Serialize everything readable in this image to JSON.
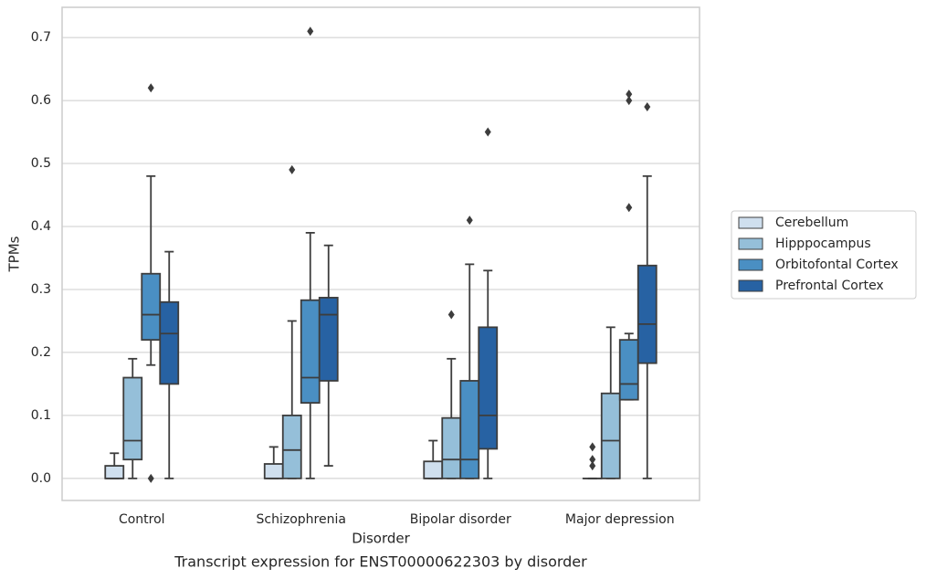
{
  "chart_data": {
    "type": "box",
    "title": "Transcript expression for ENST00000622303 by disorder",
    "xlabel": "Disorder",
    "ylabel": "TPMs",
    "categories": [
      "Control",
      "Schizophrenia",
      "Bipolar disorder",
      "Major depression"
    ],
    "ylim": [
      -0.035,
      0.748
    ],
    "yticks": [
      {
        "value": 0,
        "label": "0.0"
      },
      0.1,
      0.2,
      0.3,
      0.4,
      0.5,
      0.6,
      0.7
    ],
    "grid": true,
    "legend": "right",
    "series": [
      {
        "name": "Cerebellum",
        "color": "#cfdfee",
        "boxes": [
          {
            "min": 0,
            "q1": 0,
            "median": 0,
            "q3": 0.02,
            "max": 0.04,
            "outliers": []
          },
          {
            "min": 0,
            "q1": 0,
            "median": 0,
            "q3": 0.023,
            "max": 0.05,
            "outliers": []
          },
          {
            "min": 0,
            "q1": 0,
            "median": 0,
            "q3": 0.027,
            "max": 0.06,
            "outliers": []
          },
          {
            "min": 0,
            "q1": 0,
            "median": 0,
            "q3": 0,
            "max": 0,
            "outliers": [
              0.02,
              0.03,
              0.05
            ]
          }
        ]
      },
      {
        "name": "Hipppocampus",
        "color": "#95bfd9",
        "boxes": [
          {
            "min": 0,
            "q1": 0.03,
            "median": 0.06,
            "q3": 0.16,
            "max": 0.19,
            "outliers": []
          },
          {
            "min": 0,
            "q1": 0,
            "median": 0.045,
            "q3": 0.1,
            "max": 0.25,
            "outliers": [
              0.49
            ]
          },
          {
            "min": 0,
            "q1": 0,
            "median": 0.03,
            "q3": 0.096,
            "max": 0.19,
            "outliers": [
              0.26
            ]
          },
          {
            "min": 0,
            "q1": 0,
            "median": 0.06,
            "q3": 0.135,
            "max": 0.24,
            "outliers": []
          }
        ]
      },
      {
        "name": "Orbitofontal Cortex",
        "color": "#4a8fc3",
        "boxes": [
          {
            "min": 0.18,
            "q1": 0.22,
            "median": 0.26,
            "q3": 0.325,
            "max": 0.48,
            "outliers": [
              0,
              0.62
            ]
          },
          {
            "min": 0,
            "q1": 0.12,
            "median": 0.16,
            "q3": 0.283,
            "max": 0.39,
            "outliers": [
              0.71
            ]
          },
          {
            "min": 0,
            "q1": 0,
            "median": 0.03,
            "q3": 0.155,
            "max": 0.34,
            "outliers": [
              0.41
            ]
          },
          {
            "min": 0.125,
            "q1": 0.125,
            "median": 0.15,
            "q3": 0.22,
            "max": 0.23,
            "outliers": [
              0.43,
              0.6,
              0.61
            ]
          }
        ]
      },
      {
        "name": "Prefrontal Cortex",
        "color": "#2762a3",
        "boxes": [
          {
            "min": 0,
            "q1": 0.15,
            "median": 0.23,
            "q3": 0.28,
            "max": 0.36,
            "outliers": []
          },
          {
            "min": 0.02,
            "q1": 0.155,
            "median": 0.26,
            "q3": 0.287,
            "max": 0.37,
            "outliers": []
          },
          {
            "min": 0,
            "q1": 0.047,
            "median": 0.1,
            "q3": 0.24,
            "max": 0.33,
            "outliers": [
              0.55
            ]
          },
          {
            "min": 0,
            "q1": 0.183,
            "median": 0.245,
            "q3": 0.338,
            "max": 0.48,
            "outliers": [
              0.59
            ]
          }
        ]
      }
    ]
  }
}
